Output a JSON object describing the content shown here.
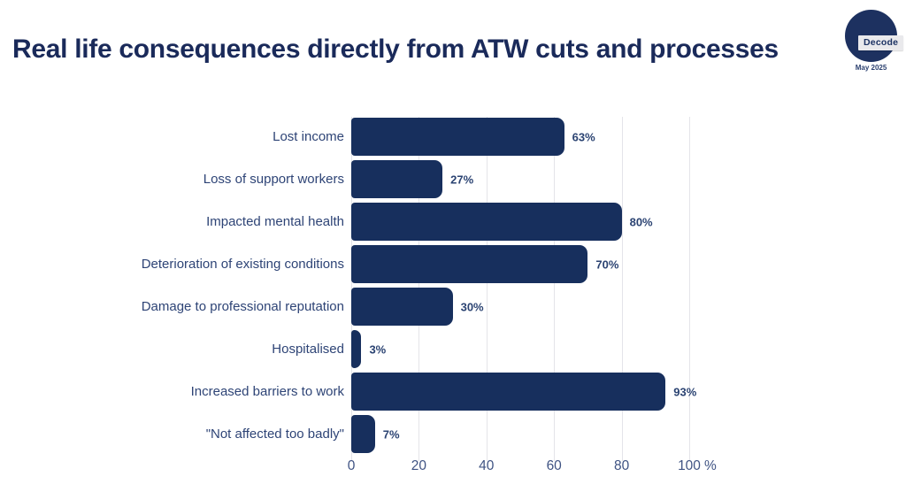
{
  "header": {
    "title": "Real life consequences directly from ATW cuts and processes",
    "logo": {
      "text": "Decode",
      "date": "May 2025"
    }
  },
  "chart_data": {
    "type": "bar",
    "orientation": "horizontal",
    "title": "Real life consequences directly from ATW cuts and processes",
    "categories": [
      "Lost income",
      "Loss of support workers",
      "Impacted mental health",
      "Deterioration of existing conditions",
      "Damage to professional reputation",
      "Hospitalised",
      "Increased barriers to work",
      "\"Not affected too badly\""
    ],
    "values": [
      63,
      27,
      80,
      70,
      30,
      3,
      93,
      7
    ],
    "value_labels": [
      "63%",
      "27%",
      "80%",
      "70%",
      "30%",
      "3%",
      "93%",
      "7%"
    ],
    "xlim": [
      0,
      100
    ],
    "x_ticks": [
      0,
      20,
      40,
      60,
      80,
      100
    ],
    "x_tick_labels": [
      "0",
      "20",
      "40",
      "60",
      "80",
      "100"
    ],
    "x_unit": "%",
    "grid": true,
    "legend": false,
    "colors": {
      "bar": "#172f5d",
      "title": "#1a2a5a",
      "category_label": "#2e4476",
      "value_label": "#2b4372",
      "tick_label": "#3f5383",
      "gridline": "#e4e4e9",
      "logo_circle": "#1d3160",
      "logo_tag_bg": "#e9e9ec",
      "background": "#ffffff"
    }
  }
}
